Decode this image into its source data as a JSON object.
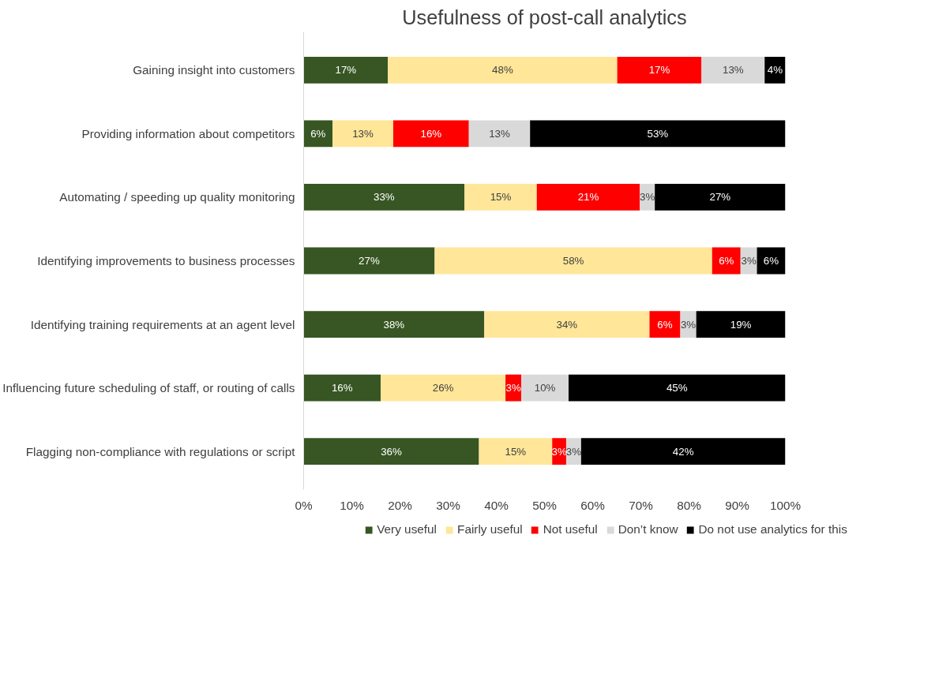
{
  "chart_data": {
    "type": "bar",
    "orientation": "horizontal",
    "stacked": true,
    "title": "Usefulness of post-call analytics",
    "categories": [
      "Gaining insight into customers",
      "Providing information about competitors",
      "Automating / speeding up quality monitoring",
      "Identifying improvements to business processes",
      "Identifying training requirements at an agent level",
      "Influencing future scheduling of staff, or routing of calls",
      "Flagging non-compliance with regulations or script"
    ],
    "series": [
      {
        "name": "Very useful",
        "color": "#375623",
        "values": [
          17.5,
          6.0,
          33.4,
          27.2,
          37.5,
          16.0,
          36.4
        ],
        "value_labels": [
          "17%",
          "6%",
          "33%",
          "27%",
          "38%",
          "16%",
          "36%"
        ]
      },
      {
        "name": "Fairly useful",
        "color": "#ffe699",
        "values": [
          47.6,
          12.6,
          15.0,
          57.6,
          34.3,
          25.9,
          15.2
        ],
        "value_labels": [
          "48%",
          "13%",
          "15%",
          "58%",
          "34%",
          "26%",
          "15%"
        ]
      },
      {
        "name": "Not useful",
        "color": "#ff0000",
        "values": [
          17.5,
          15.7,
          21.4,
          5.9,
          6.4,
          3.3,
          2.9
        ],
        "value_labels": [
          "17%",
          "16%",
          "21%",
          "6%",
          "6%",
          "3%",
          "3%"
        ]
      },
      {
        "name": "Don’t know",
        "color": "#d9d9d9",
        "values": [
          13.1,
          12.7,
          3.1,
          3.4,
          3.3,
          9.8,
          3.1
        ],
        "value_labels": [
          "13%",
          "13%",
          "3%",
          "3%",
          "3%",
          "10%",
          "3%"
        ]
      },
      {
        "name": "Do not use analytics for this",
        "color": "#000000",
        "values": [
          4.3,
          53.0,
          27.1,
          5.9,
          18.5,
          45.0,
          42.4
        ],
        "value_labels": [
          "4%",
          "53%",
          "27%",
          "6%",
          "19%",
          "45%",
          "42%"
        ]
      }
    ],
    "xlim": [
      0,
      100
    ],
    "xticks": [
      {
        "value": 0,
        "label": "0%"
      },
      {
        "value": 10,
        "label": "10%"
      },
      {
        "value": 20,
        "label": "20%"
      },
      {
        "value": 30,
        "label": "30%"
      },
      {
        "value": 40,
        "label": "40%"
      },
      {
        "value": 50,
        "label": "50%"
      },
      {
        "value": 60,
        "label": "60%"
      },
      {
        "value": 70,
        "label": "70%"
      },
      {
        "value": 80,
        "label": "80%"
      },
      {
        "value": 90,
        "label": "90%"
      },
      {
        "value": 100,
        "label": "100%"
      }
    ],
    "grid": false,
    "legend": "bottom"
  }
}
